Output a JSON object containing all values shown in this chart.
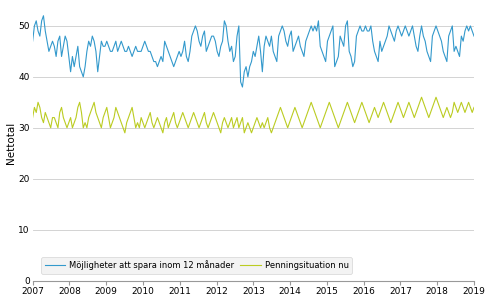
{
  "title": "",
  "ylabel": "Nettotal",
  "xlim": [
    2007,
    2019
  ],
  "ylim": [
    0,
    54
  ],
  "yticks": [
    0,
    10,
    20,
    30,
    40,
    50
  ],
  "xticks": [
    2007,
    2008,
    2009,
    2010,
    2011,
    2012,
    2013,
    2014,
    2015,
    2016,
    2017,
    2018,
    2019
  ],
  "line1_color": "#3399CC",
  "line2_color": "#BBCC22",
  "legend1": "Möjligheter att spara inom 12 månader",
  "legend2": "Penningsituation nu",
  "background_color": "#ffffff",
  "grid_color": "#cccccc",
  "blue_data": [
    47,
    50,
    51,
    49,
    48,
    51,
    52,
    49,
    47,
    45,
    46,
    47,
    46,
    44,
    47,
    48,
    44,
    46,
    48,
    47,
    44,
    41,
    44,
    42,
    44,
    46,
    42,
    41,
    40,
    42,
    45,
    47,
    46,
    48,
    47,
    45,
    41,
    44,
    47,
    46,
    46,
    47,
    46,
    45,
    45,
    46,
    47,
    45,
    46,
    47,
    46,
    45,
    45,
    46,
    45,
    44,
    45,
    46,
    45,
    45,
    45,
    46,
    47,
    46,
    45,
    45,
    44,
    43,
    43,
    42,
    43,
    44,
    43,
    47,
    46,
    45,
    44,
    43,
    42,
    43,
    44,
    45,
    44,
    45,
    47,
    44,
    43,
    45,
    48,
    49,
    50,
    49,
    47,
    46,
    48,
    49,
    45,
    46,
    47,
    48,
    48,
    47,
    45,
    44,
    46,
    47,
    51,
    50,
    47,
    45,
    46,
    43,
    44,
    48,
    50,
    39,
    38,
    41,
    42,
    40,
    42,
    43,
    45,
    44,
    46,
    48,
    45,
    41,
    46,
    48,
    47,
    46,
    48,
    45,
    44,
    43,
    48,
    49,
    50,
    49,
    47,
    46,
    48,
    49,
    45,
    46,
    47,
    48,
    46,
    45,
    44,
    47,
    48,
    49,
    50,
    49,
    50,
    49,
    51,
    46,
    45,
    44,
    43,
    47,
    48,
    49,
    50,
    42,
    43,
    44,
    48,
    47,
    46,
    50,
    51,
    45,
    44,
    42,
    43,
    48,
    49,
    50,
    49,
    49,
    50,
    49,
    49,
    50,
    47,
    45,
    44,
    43,
    47,
    45,
    46,
    47,
    48,
    50,
    49,
    48,
    47,
    49,
    50,
    49,
    48,
    49,
    50,
    49,
    48,
    49,
    50,
    48,
    46,
    45,
    48,
    50,
    48,
    47,
    45,
    44,
    43,
    48,
    49,
    50,
    49,
    48,
    47,
    45,
    44,
    43,
    48,
    49,
    50,
    45,
    46,
    45,
    44,
    48,
    47,
    49,
    50,
    49,
    50,
    49,
    48
  ],
  "green_data": [
    32,
    34,
    33,
    35,
    34,
    32,
    31,
    33,
    32,
    31,
    30,
    32,
    32,
    31,
    30,
    33,
    34,
    32,
    31,
    30,
    31,
    32,
    30,
    31,
    32,
    34,
    35,
    33,
    30,
    31,
    30,
    32,
    33,
    34,
    35,
    33,
    32,
    31,
    30,
    32,
    33,
    34,
    32,
    30,
    31,
    32,
    34,
    33,
    32,
    31,
    30,
    29,
    31,
    32,
    33,
    34,
    32,
    30,
    31,
    30,
    32,
    31,
    30,
    31,
    32,
    33,
    31,
    30,
    31,
    32,
    31,
    30,
    29,
    31,
    32,
    30,
    31,
    32,
    33,
    31,
    30,
    31,
    32,
    33,
    32,
    31,
    30,
    31,
    32,
    33,
    32,
    31,
    30,
    31,
    32,
    33,
    31,
    30,
    31,
    32,
    33,
    32,
    31,
    30,
    29,
    31,
    32,
    31,
    30,
    31,
    32,
    30,
    31,
    32,
    30,
    31,
    32,
    29,
    30,
    31,
    30,
    29,
    30,
    31,
    32,
    31,
    30,
    31,
    30,
    31,
    32,
    30,
    29,
    30,
    31,
    32,
    33,
    34,
    33,
    32,
    31,
    30,
    31,
    32,
    33,
    34,
    33,
    32,
    31,
    30,
    31,
    32,
    33,
    34,
    35,
    34,
    33,
    32,
    31,
    30,
    31,
    32,
    33,
    34,
    35,
    34,
    33,
    32,
    31,
    30,
    31,
    32,
    33,
    34,
    35,
    34,
    33,
    32,
    31,
    32,
    33,
    34,
    35,
    34,
    33,
    32,
    31,
    32,
    33,
    34,
    33,
    32,
    33,
    34,
    35,
    34,
    33,
    32,
    31,
    32,
    33,
    34,
    35,
    34,
    33,
    32,
    33,
    34,
    35,
    34,
    33,
    32,
    33,
    34,
    35,
    36,
    35,
    34,
    33,
    32,
    33,
    34,
    35,
    36,
    35,
    34,
    33,
    32,
    33,
    34,
    33,
    32,
    33,
    35,
    34,
    33,
    34,
    35,
    34,
    33,
    34,
    35,
    34,
    33,
    34
  ]
}
